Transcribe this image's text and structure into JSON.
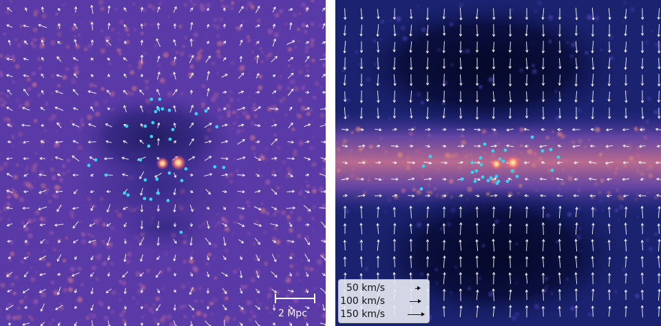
{
  "scale_bar": {
    "label": "2 Mpc"
  },
  "legend": {
    "items": [
      {
        "label": "50 km/s",
        "speed": 50
      },
      {
        "label": "100 km/s",
        "speed": 100
      },
      {
        "label": "150 km/s",
        "speed": 150
      }
    ]
  },
  "colors": {
    "left_background": "#5a3aa6",
    "right_background": "#141c5e",
    "filament": "#d77e78",
    "void": "#0a0d3a",
    "satellite_dots": "#38d3f0",
    "central_galaxies": "#ffd8a0",
    "arrows": "#ffffff"
  }
}
